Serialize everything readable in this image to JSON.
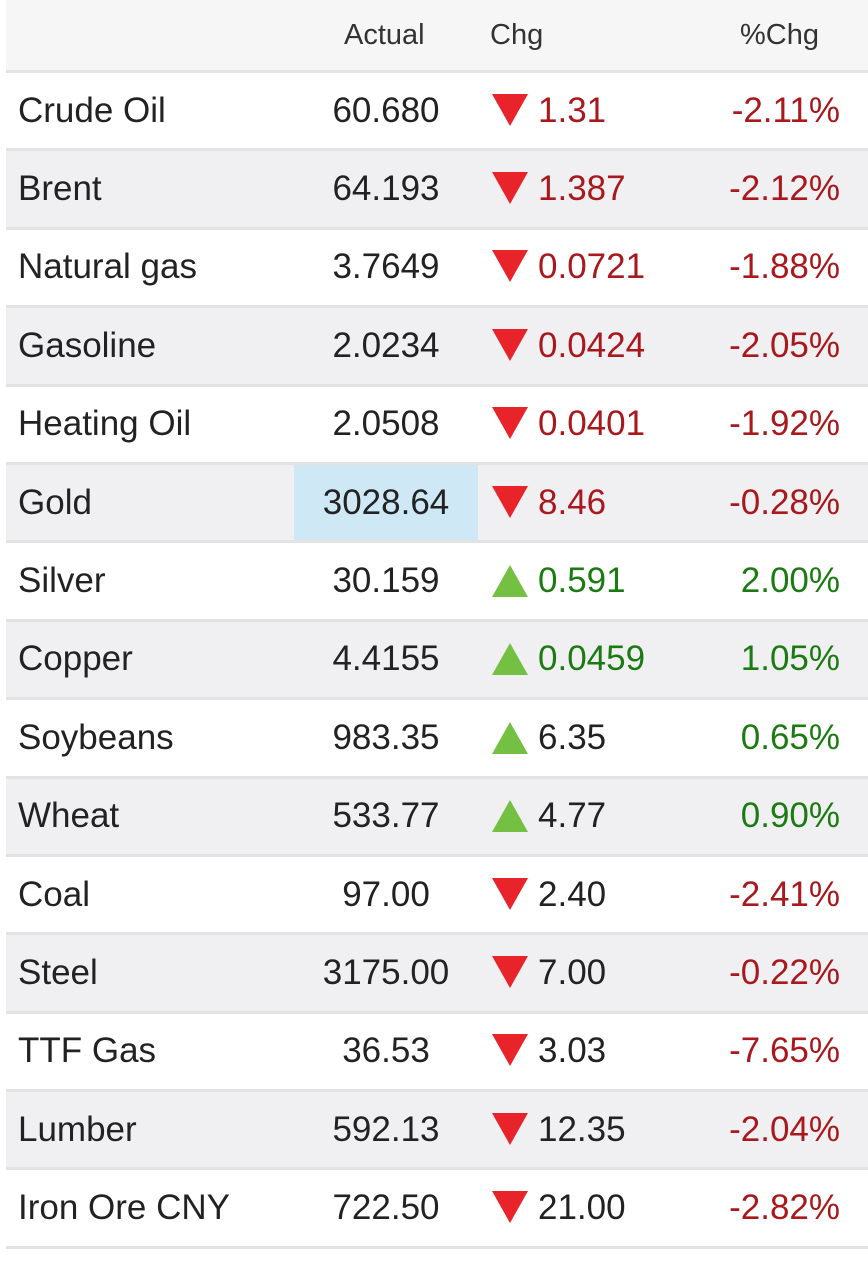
{
  "header": {
    "actual": "Actual",
    "chg": "Chg",
    "pct": "%Chg"
  },
  "colors": {
    "down_arrow": "#e8242a",
    "up_arrow": "#74c043",
    "negative_text": "#a8181c",
    "positive_text": "#1c7a12",
    "highlight": "#cfe8f6"
  },
  "rows": [
    {
      "name": "Crude Oil",
      "actual": "60.680",
      "chg": "1.31",
      "pct": "-2.11%",
      "dir": "down",
      "chg_color": "neg"
    },
    {
      "name": "Brent",
      "actual": "64.193",
      "chg": "1.387",
      "pct": "-2.12%",
      "dir": "down",
      "chg_color": "neg"
    },
    {
      "name": "Natural gas",
      "actual": "3.7649",
      "chg": "0.0721",
      "pct": "-1.88%",
      "dir": "down",
      "chg_color": "neg"
    },
    {
      "name": "Gasoline",
      "actual": "2.0234",
      "chg": "0.0424",
      "pct": "-2.05%",
      "dir": "down",
      "chg_color": "neg"
    },
    {
      "name": "Heating Oil",
      "actual": "2.0508",
      "chg": "0.0401",
      "pct": "-1.92%",
      "dir": "down",
      "chg_color": "neg"
    },
    {
      "name": "Gold",
      "actual": "3028.64",
      "chg": "8.46",
      "pct": "-0.28%",
      "dir": "down",
      "chg_color": "neg",
      "highlight": true
    },
    {
      "name": "Silver",
      "actual": "30.159",
      "chg": "0.591",
      "pct": "2.00%",
      "dir": "up",
      "chg_color": "pos"
    },
    {
      "name": "Copper",
      "actual": "4.4155",
      "chg": "0.0459",
      "pct": "1.05%",
      "dir": "up",
      "chg_color": "pos"
    },
    {
      "name": "Soybeans",
      "actual": "983.35",
      "chg": "6.35",
      "pct": "0.65%",
      "dir": "up",
      "chg_color": "dark"
    },
    {
      "name": "Wheat",
      "actual": "533.77",
      "chg": "4.77",
      "pct": "0.90%",
      "dir": "up",
      "chg_color": "dark"
    },
    {
      "name": "Coal",
      "actual": "97.00",
      "chg": "2.40",
      "pct": "-2.41%",
      "dir": "down",
      "chg_color": "dark"
    },
    {
      "name": "Steel",
      "actual": "3175.00",
      "chg": "7.00",
      "pct": "-0.22%",
      "dir": "down",
      "chg_color": "dark"
    },
    {
      "name": "TTF Gas",
      "actual": "36.53",
      "chg": "3.03",
      "pct": "-7.65%",
      "dir": "down",
      "chg_color": "dark"
    },
    {
      "name": "Lumber",
      "actual": "592.13",
      "chg": "12.35",
      "pct": "-2.04%",
      "dir": "down",
      "chg_color": "dark"
    },
    {
      "name": "Iron Ore CNY",
      "actual": "722.50",
      "chg": "21.00",
      "pct": "-2.82%",
      "dir": "down",
      "chg_color": "dark"
    }
  ]
}
